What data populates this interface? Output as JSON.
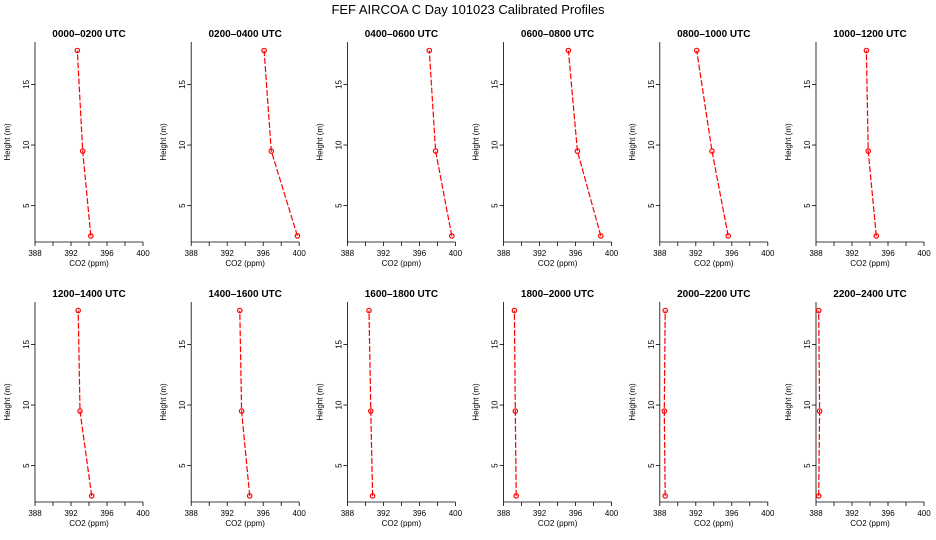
{
  "title": "FEF AIRCOA C  Day 101023  Calibrated Profiles",
  "xlabel": "CO2 (ppm)",
  "ylabel": "Height (m)",
  "line_color": "#ff0000",
  "chart_data": [
    {
      "type": "line",
      "title": "0000–0200 UTC",
      "xlabel": "CO2 (ppm)",
      "ylabel": "Height (m)",
      "xlim": [
        388,
        400
      ],
      "ylim": [
        2,
        18.5
      ],
      "xticks": [
        388,
        392,
        396,
        400
      ],
      "yticks": [
        5,
        10,
        15
      ],
      "series": [
        {
          "x": [
            394.2,
            393.3,
            392.7
          ],
          "y": [
            2.5,
            9.5,
            17.8
          ]
        }
      ]
    },
    {
      "type": "line",
      "title": "0200–0400 UTC",
      "xlabel": "CO2 (ppm)",
      "ylabel": "Height (m)",
      "xlim": [
        388,
        400
      ],
      "ylim": [
        2,
        18.5
      ],
      "xticks": [
        388,
        392,
        396,
        400
      ],
      "yticks": [
        5,
        10,
        15
      ],
      "series": [
        {
          "x": [
            399.8,
            396.9,
            396.1
          ],
          "y": [
            2.5,
            9.5,
            17.8
          ]
        }
      ]
    },
    {
      "type": "line",
      "title": "0400–0600 UTC",
      "xlabel": "CO2 (ppm)",
      "ylabel": "Height (m)",
      "xlim": [
        388,
        400
      ],
      "ylim": [
        2,
        18.5
      ],
      "xticks": [
        388,
        392,
        396,
        400
      ],
      "yticks": [
        5,
        10,
        15
      ],
      "series": [
        {
          "x": [
            399.6,
            397.8,
            397.1
          ],
          "y": [
            2.5,
            9.5,
            17.8
          ]
        }
      ]
    },
    {
      "type": "line",
      "title": "0600–0800 UTC",
      "xlabel": "CO2 (ppm)",
      "ylabel": "Height (m)",
      "xlim": [
        388,
        400
      ],
      "ylim": [
        2,
        18.5
      ],
      "xticks": [
        388,
        392,
        396,
        400
      ],
      "yticks": [
        5,
        10,
        15
      ],
      "series": [
        {
          "x": [
            398.8,
            396.2,
            395.2
          ],
          "y": [
            2.5,
            9.5,
            17.8
          ]
        }
      ]
    },
    {
      "type": "line",
      "title": "0800–1000 UTC",
      "xlabel": "CO2 (ppm)",
      "ylabel": "Height (m)",
      "xlim": [
        388,
        400
      ],
      "ylim": [
        2,
        18.5
      ],
      "xticks": [
        388,
        392,
        396,
        400
      ],
      "yticks": [
        5,
        10,
        15
      ],
      "series": [
        {
          "x": [
            395.6,
            393.8,
            392.1
          ],
          "y": [
            2.5,
            9.5,
            17.8
          ]
        }
      ]
    },
    {
      "type": "line",
      "title": "1000–1200 UTC",
      "xlabel": "CO2 (ppm)",
      "ylabel": "Height (m)",
      "xlim": [
        388,
        400
      ],
      "ylim": [
        2,
        18.5
      ],
      "xticks": [
        388,
        392,
        396,
        400
      ],
      "yticks": [
        5,
        10,
        15
      ],
      "series": [
        {
          "x": [
            394.7,
            393.8,
            393.6
          ],
          "y": [
            2.5,
            9.5,
            17.8
          ]
        }
      ]
    },
    {
      "type": "line",
      "title": "1200–1400 UTC",
      "xlabel": "CO2 (ppm)",
      "ylabel": "Height (m)",
      "xlim": [
        388,
        400
      ],
      "ylim": [
        2,
        18.5
      ],
      "xticks": [
        388,
        392,
        396,
        400
      ],
      "yticks": [
        5,
        10,
        15
      ],
      "series": [
        {
          "x": [
            394.3,
            393.0,
            392.8
          ],
          "y": [
            2.5,
            9.5,
            17.8
          ]
        }
      ]
    },
    {
      "type": "line",
      "title": "1400–1600 UTC",
      "xlabel": "CO2 (ppm)",
      "ylabel": "Height (m)",
      "xlim": [
        388,
        400
      ],
      "ylim": [
        2,
        18.5
      ],
      "xticks": [
        388,
        392,
        396,
        400
      ],
      "yticks": [
        5,
        10,
        15
      ],
      "series": [
        {
          "x": [
            394.5,
            393.6,
            393.4
          ],
          "y": [
            2.5,
            9.5,
            17.8
          ]
        }
      ]
    },
    {
      "type": "line",
      "title": "1600–1800 UTC",
      "xlabel": "CO2 (ppm)",
      "ylabel": "Height (m)",
      "xlim": [
        388,
        400
      ],
      "ylim": [
        2,
        18.5
      ],
      "xticks": [
        388,
        392,
        396,
        400
      ],
      "yticks": [
        5,
        10,
        15
      ],
      "series": [
        {
          "x": [
            390.8,
            390.6,
            390.4
          ],
          "y": [
            2.5,
            9.5,
            17.8
          ]
        }
      ]
    },
    {
      "type": "line",
      "title": "1800–2000 UTC",
      "xlabel": "CO2 (ppm)",
      "ylabel": "Height (m)",
      "xlim": [
        388,
        400
      ],
      "ylim": [
        2,
        18.5
      ],
      "xticks": [
        388,
        392,
        396,
        400
      ],
      "yticks": [
        5,
        10,
        15
      ],
      "series": [
        {
          "x": [
            389.4,
            389.3,
            389.2
          ],
          "y": [
            2.5,
            9.5,
            17.8
          ]
        }
      ]
    },
    {
      "type": "line",
      "title": "2000–2200 UTC",
      "xlabel": "CO2 (ppm)",
      "ylabel": "Height (m)",
      "xlim": [
        388,
        400
      ],
      "ylim": [
        2,
        18.5
      ],
      "xticks": [
        388,
        392,
        396,
        400
      ],
      "yticks": [
        5,
        10,
        15
      ],
      "series": [
        {
          "x": [
            388.6,
            388.5,
            388.6
          ],
          "y": [
            2.5,
            9.5,
            17.8
          ]
        }
      ]
    },
    {
      "type": "line",
      "title": "2200–2400 UTC",
      "xlabel": "CO2 (ppm)",
      "ylabel": "Height (m)",
      "xlim": [
        388,
        400
      ],
      "ylim": [
        2,
        18.5
      ],
      "xticks": [
        388,
        392,
        396,
        400
      ],
      "yticks": [
        5,
        10,
        15
      ],
      "series": [
        {
          "x": [
            388.3,
            388.4,
            388.3
          ],
          "y": [
            2.5,
            9.5,
            17.8
          ]
        }
      ]
    }
  ]
}
